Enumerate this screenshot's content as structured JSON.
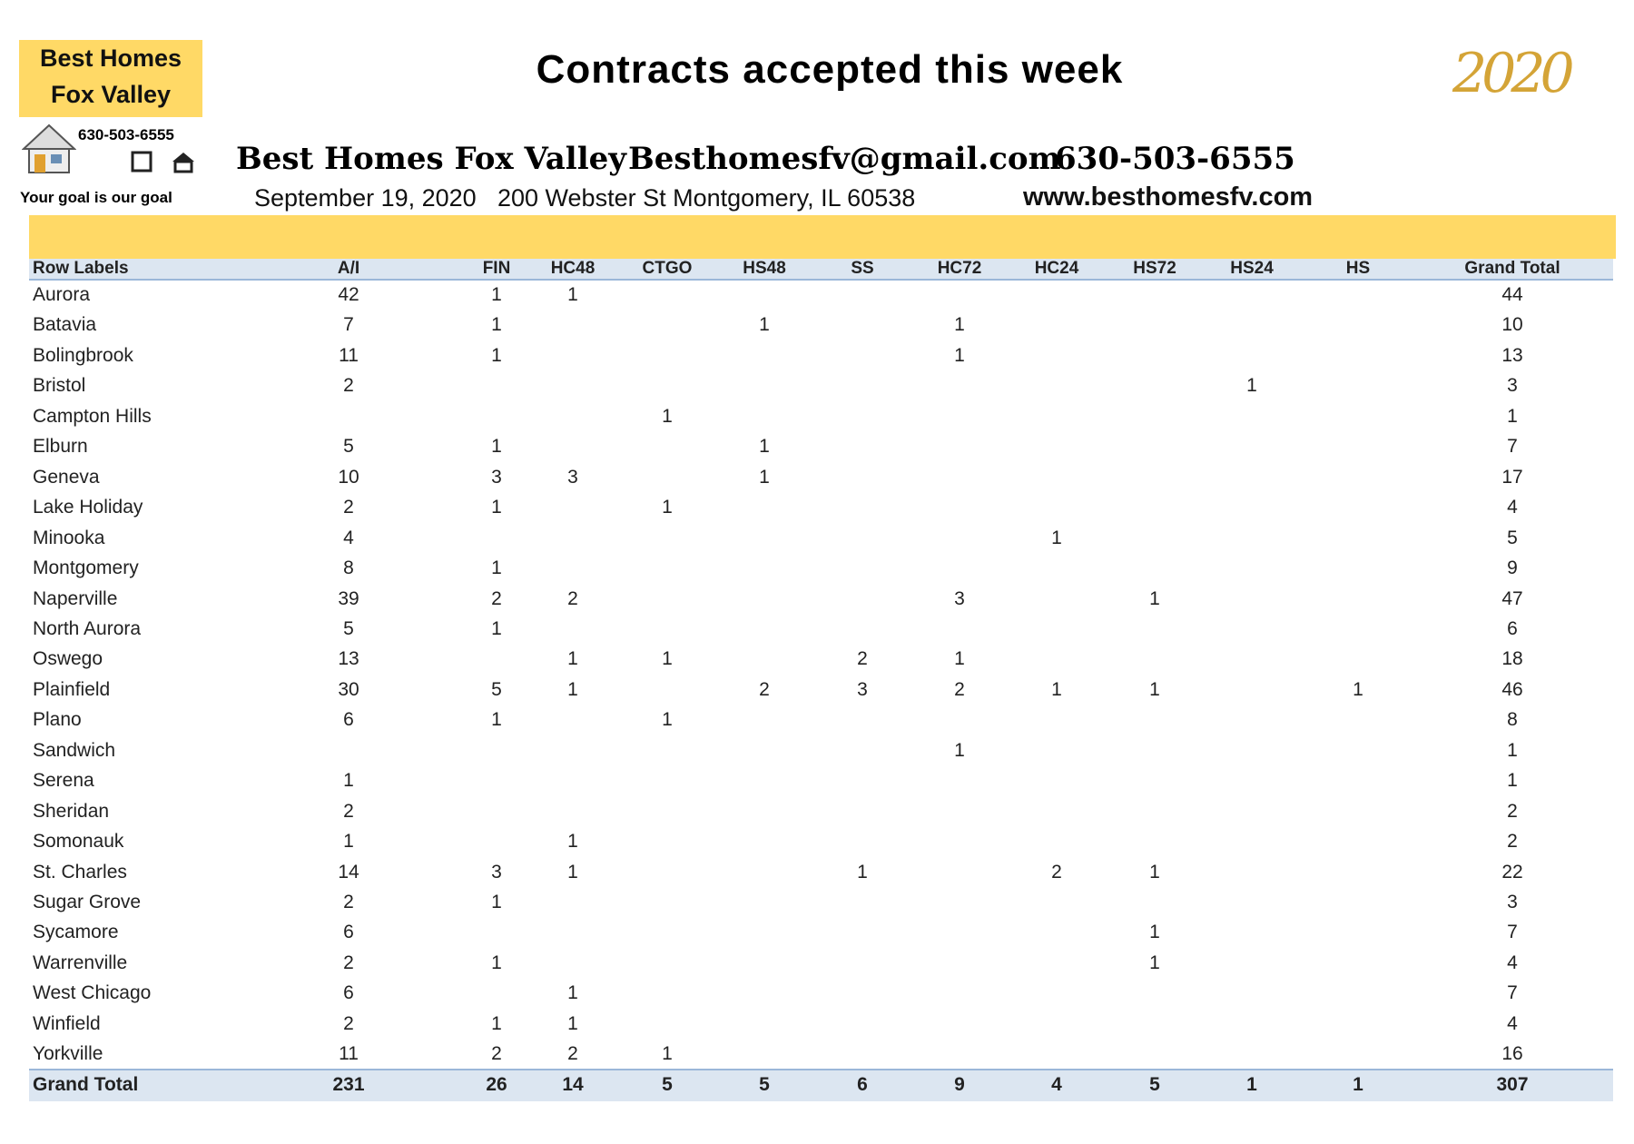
{
  "logo": {
    "line1": "Best Homes",
    "line2": "Fox Valley",
    "phone": "630-503-6555",
    "tagline": "Your goal is our goal"
  },
  "header": {
    "title": "Contracts accepted this week",
    "year": "2020",
    "company": "Best Homes Fox Valley",
    "email": "Besthomesfv@gmail.com",
    "phone": "630-503-6555",
    "date": "September 19, 2020",
    "address": "200 Webster St Montgomery, IL 60538",
    "website": "www.besthomesfv.com"
  },
  "table": {
    "columns": [
      "Row Labels",
      "A/I",
      "FIN",
      "HC48",
      "CTGO",
      "HS48",
      "SS",
      "HC72",
      "HC24",
      "HS72",
      "HS24",
      "HS",
      "Grand Total"
    ],
    "rows": [
      {
        "label": "Aurora",
        "cells": [
          42,
          1,
          1,
          null,
          null,
          null,
          null,
          null,
          null,
          null,
          null,
          44
        ]
      },
      {
        "label": "Batavia",
        "cells": [
          7,
          1,
          null,
          null,
          1,
          null,
          1,
          null,
          null,
          null,
          null,
          10
        ]
      },
      {
        "label": "Bolingbrook",
        "cells": [
          11,
          1,
          null,
          null,
          null,
          null,
          1,
          null,
          null,
          null,
          null,
          13
        ]
      },
      {
        "label": "Bristol",
        "cells": [
          2,
          null,
          null,
          null,
          null,
          null,
          null,
          null,
          null,
          1,
          null,
          3
        ]
      },
      {
        "label": "Campton Hills",
        "cells": [
          null,
          null,
          null,
          1,
          null,
          null,
          null,
          null,
          null,
          null,
          null,
          1
        ]
      },
      {
        "label": "Elburn",
        "cells": [
          5,
          1,
          null,
          null,
          1,
          null,
          null,
          null,
          null,
          null,
          null,
          7
        ]
      },
      {
        "label": "Geneva",
        "cells": [
          10,
          3,
          3,
          null,
          1,
          null,
          null,
          null,
          null,
          null,
          null,
          17
        ]
      },
      {
        "label": "Lake Holiday",
        "cells": [
          2,
          1,
          null,
          1,
          null,
          null,
          null,
          null,
          null,
          null,
          null,
          4
        ]
      },
      {
        "label": "Minooka",
        "cells": [
          4,
          null,
          null,
          null,
          null,
          null,
          null,
          1,
          null,
          null,
          null,
          5
        ]
      },
      {
        "label": "Montgomery",
        "cells": [
          8,
          1,
          null,
          null,
          null,
          null,
          null,
          null,
          null,
          null,
          null,
          9
        ]
      },
      {
        "label": "Naperville",
        "cells": [
          39,
          2,
          2,
          null,
          null,
          null,
          3,
          null,
          1,
          null,
          null,
          47
        ]
      },
      {
        "label": "North Aurora",
        "cells": [
          5,
          1,
          null,
          null,
          null,
          null,
          null,
          null,
          null,
          null,
          null,
          6
        ]
      },
      {
        "label": "Oswego",
        "cells": [
          13,
          null,
          1,
          1,
          null,
          2,
          1,
          null,
          null,
          null,
          null,
          18
        ]
      },
      {
        "label": "Plainfield",
        "cells": [
          30,
          5,
          1,
          null,
          2,
          3,
          2,
          1,
          1,
          null,
          1,
          46
        ]
      },
      {
        "label": "Plano",
        "cells": [
          6,
          1,
          null,
          1,
          null,
          null,
          null,
          null,
          null,
          null,
          null,
          8
        ]
      },
      {
        "label": "Sandwich",
        "cells": [
          null,
          null,
          null,
          null,
          null,
          null,
          1,
          null,
          null,
          null,
          null,
          1
        ]
      },
      {
        "label": "Serena",
        "cells": [
          1,
          null,
          null,
          null,
          null,
          null,
          null,
          null,
          null,
          null,
          null,
          1
        ]
      },
      {
        "label": "Sheridan",
        "cells": [
          2,
          null,
          null,
          null,
          null,
          null,
          null,
          null,
          null,
          null,
          null,
          2
        ]
      },
      {
        "label": "Somonauk",
        "cells": [
          1,
          null,
          1,
          null,
          null,
          null,
          null,
          null,
          null,
          null,
          null,
          2
        ]
      },
      {
        "label": "St. Charles",
        "cells": [
          14,
          3,
          1,
          null,
          null,
          1,
          null,
          2,
          1,
          null,
          null,
          22
        ]
      },
      {
        "label": "Sugar Grove",
        "cells": [
          2,
          1,
          null,
          null,
          null,
          null,
          null,
          null,
          null,
          null,
          null,
          3
        ]
      },
      {
        "label": "Sycamore",
        "cells": [
          6,
          null,
          null,
          null,
          null,
          null,
          null,
          null,
          1,
          null,
          null,
          7
        ]
      },
      {
        "label": "Warrenville",
        "cells": [
          2,
          1,
          null,
          null,
          null,
          null,
          null,
          null,
          1,
          null,
          null,
          4
        ]
      },
      {
        "label": "West Chicago",
        "cells": [
          6,
          null,
          1,
          null,
          null,
          null,
          null,
          null,
          null,
          null,
          null,
          7
        ]
      },
      {
        "label": "Winfield",
        "cells": [
          2,
          1,
          1,
          null,
          null,
          null,
          null,
          null,
          null,
          null,
          null,
          4
        ]
      },
      {
        "label": "Yorkville",
        "cells": [
          11,
          2,
          2,
          1,
          null,
          null,
          null,
          null,
          null,
          null,
          null,
          16
        ]
      }
    ],
    "total": {
      "label": "Grand Total",
      "cells": [
        231,
        26,
        14,
        5,
        5,
        6,
        9,
        4,
        5,
        1,
        1,
        307
      ]
    }
  }
}
